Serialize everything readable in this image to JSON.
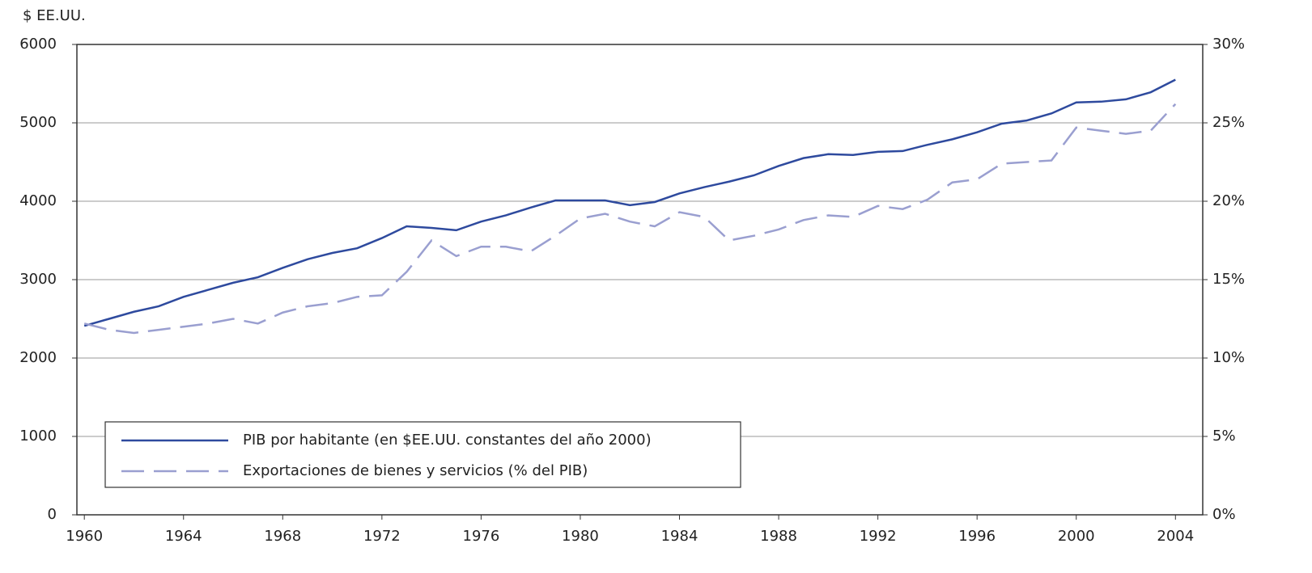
{
  "chart_data": {
    "type": "line",
    "y_axis_label": "$ EE.UU.",
    "x": [
      1960,
      1961,
      1962,
      1963,
      1964,
      1965,
      1966,
      1967,
      1968,
      1969,
      1970,
      1971,
      1972,
      1973,
      1974,
      1975,
      1976,
      1977,
      1978,
      1979,
      1980,
      1981,
      1982,
      1983,
      1984,
      1985,
      1986,
      1987,
      1988,
      1989,
      1990,
      1991,
      1992,
      1993,
      1994,
      1995,
      1996,
      1997,
      1998,
      1999,
      2000,
      2001,
      2002,
      2003,
      2004
    ],
    "series": [
      {
        "name": "PIB por habitante (en $EE.UU. constantes del año 2000)",
        "color": "#2e4a9e",
        "dashed": false,
        "values": [
          2410,
          2500,
          2590,
          2660,
          2780,
          2870,
          2960,
          3030,
          3150,
          3260,
          3340,
          3400,
          3530,
          3680,
          3660,
          3630,
          3740,
          3820,
          3920,
          4010,
          4010,
          4010,
          3950,
          3990,
          4100,
          4180,
          4250,
          4330,
          4450,
          4550,
          4600,
          4590,
          4630,
          4640,
          4720,
          4790,
          4880,
          4990,
          5030,
          5120,
          5260,
          5270,
          5300,
          5390,
          5550
        ]
      },
      {
        "name": "Exportaciones de bienes y servicios (% del PIB)",
        "color": "#9a9fd0",
        "dashed": true,
        "axis": "y2",
        "values": [
          12.2,
          11.8,
          11.6,
          11.8,
          12.0,
          12.2,
          12.5,
          12.2,
          12.9,
          13.3,
          13.5,
          13.9,
          14.0,
          15.5,
          17.5,
          16.5,
          17.1,
          17.1,
          16.8,
          17.8,
          18.9,
          19.2,
          18.7,
          18.4,
          19.3,
          19.0,
          17.5,
          17.8,
          18.2,
          18.8,
          19.1,
          19.0,
          19.7,
          19.5,
          20.1,
          21.2,
          21.4,
          22.4,
          22.5,
          22.6,
          24.7,
          24.5,
          24.3,
          24.5,
          26.2
        ]
      }
    ],
    "xlim": [
      1959.7,
      2005.1
    ],
    "xticks": [
      1960,
      1964,
      1968,
      1972,
      1976,
      1980,
      1984,
      1988,
      1992,
      1996,
      2000,
      2004
    ],
    "ylim": [
      0,
      6000
    ],
    "yticks": [
      0,
      1000,
      2000,
      3000,
      4000,
      5000,
      6000
    ],
    "y2lim": [
      0,
      30
    ],
    "y2ticks": [
      {
        "value": 0,
        "label": "0%"
      },
      {
        "value": 5,
        "label": "5%"
      },
      {
        "value": 10,
        "label": "10%"
      },
      {
        "value": 15,
        "label": "15%"
      },
      {
        "value": 20,
        "label": "20%"
      },
      {
        "value": 25,
        "label": "25%"
      },
      {
        "value": 30,
        "label": "30%"
      }
    ],
    "grid": true,
    "legend": "lower left"
  }
}
